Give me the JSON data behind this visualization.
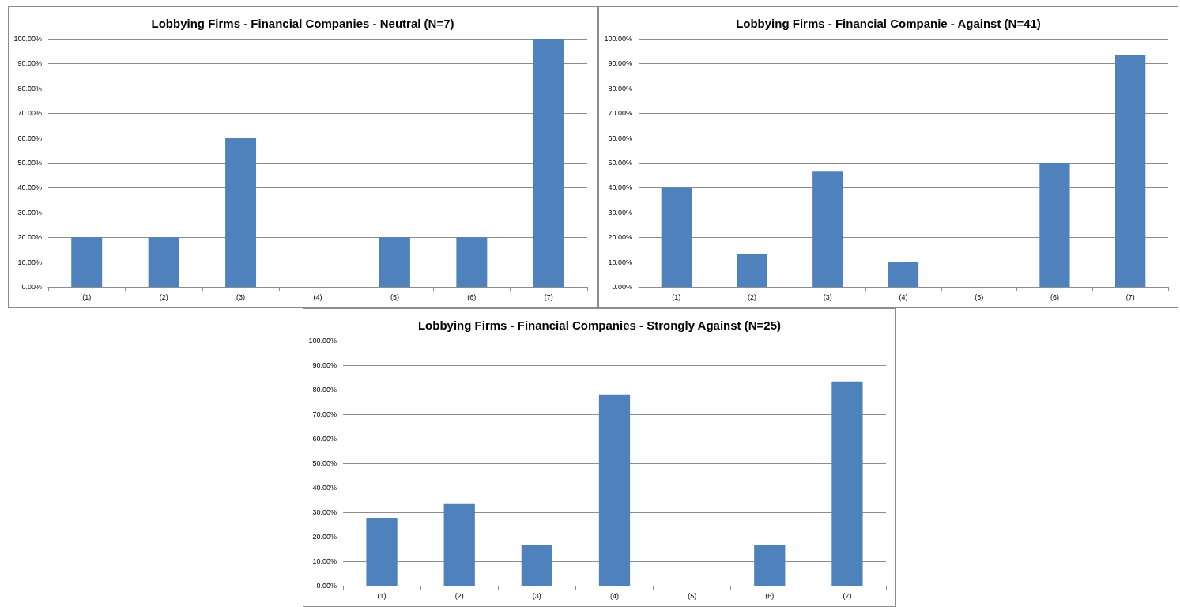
{
  "chart_data": [
    {
      "type": "bar",
      "title": "Lobbying Firms - Financial Companies - Neutral (N=7)",
      "categories": [
        "(1)",
        "(2)",
        "(3)",
        "(4)",
        "(5)",
        "(6)",
        "(7)"
      ],
      "values": [
        20,
        20,
        60,
        0,
        20,
        20,
        100
      ],
      "color": "#4f81bd",
      "ylim": [
        0,
        100
      ],
      "yticks": [
        {
          "value": 0,
          "label": "0.00%"
        },
        {
          "value": 10,
          "label": "10.00%"
        },
        {
          "value": 20,
          "label": "20.00%"
        },
        {
          "value": 30,
          "label": "30.00%"
        },
        {
          "value": 40,
          "label": "40.00%"
        },
        {
          "value": 50,
          "label": "50.00%"
        },
        {
          "value": 60,
          "label": "60.00%"
        },
        {
          "value": 70,
          "label": "70.00%"
        },
        {
          "value": 80,
          "label": "80.00%"
        },
        {
          "value": 90,
          "label": "90.00%"
        },
        {
          "value": 100,
          "label": "100.00%"
        }
      ],
      "grid": "y"
    },
    {
      "type": "bar",
      "title": "Lobbying Firms - Financial Companie - Against (N=41)",
      "categories": [
        "(1)",
        "(2)",
        "(3)",
        "(4)",
        "(5)",
        "(6)",
        "(7)"
      ],
      "values": [
        40,
        13.3,
        46.7,
        10,
        0,
        50,
        93.5
      ],
      "color": "#4f81bd",
      "ylim": [
        0,
        100
      ],
      "yticks": [
        {
          "value": 0,
          "label": "0.00%"
        },
        {
          "value": 10,
          "label": "10.00%"
        },
        {
          "value": 20,
          "label": "20.00%"
        },
        {
          "value": 30,
          "label": "30.00%"
        },
        {
          "value": 40,
          "label": "40.00%"
        },
        {
          "value": 50,
          "label": "50.00%"
        },
        {
          "value": 60,
          "label": "60.00%"
        },
        {
          "value": 70,
          "label": "70.00%"
        },
        {
          "value": 80,
          "label": "80.00%"
        },
        {
          "value": 90,
          "label": "90.00%"
        },
        {
          "value": 100,
          "label": "100.00%"
        }
      ],
      "grid": "y"
    },
    {
      "type": "bar",
      "title": "Lobbying Firms - Financial Companies - Strongly Against (N=25)",
      "categories": [
        "(1)",
        "(2)",
        "(3)",
        "(4)",
        "(5)",
        "(6)",
        "(7)"
      ],
      "values": [
        27.5,
        33.3,
        16.7,
        77.8,
        0,
        16.7,
        83.3
      ],
      "color": "#4f81bd",
      "ylim": [
        0,
        100
      ],
      "yticks": [
        {
          "value": 0,
          "label": "0.00%"
        },
        {
          "value": 10,
          "label": "10.00%"
        },
        {
          "value": 20,
          "label": "20.00%"
        },
        {
          "value": 30,
          "label": "30.00%"
        },
        {
          "value": 40,
          "label": "40.00%"
        },
        {
          "value": 50,
          "label": "50.00%"
        },
        {
          "value": 60,
          "label": "60.00%"
        },
        {
          "value": 70,
          "label": "70.00%"
        },
        {
          "value": 80,
          "label": "80.00%"
        },
        {
          "value": 90,
          "label": "90.00%"
        },
        {
          "value": 100,
          "label": "100.00%"
        }
      ],
      "grid": "y"
    }
  ]
}
